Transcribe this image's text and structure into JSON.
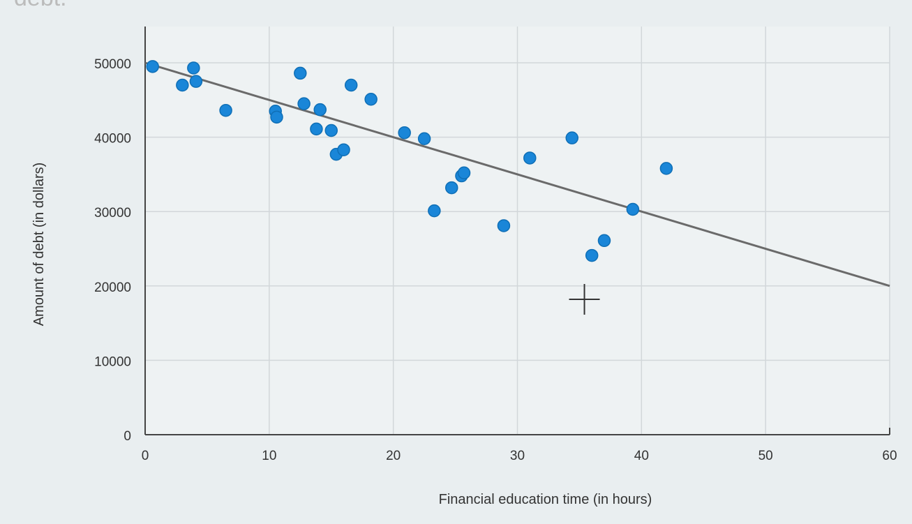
{
  "header_fragment": "debt.",
  "chart_data": {
    "type": "scatter",
    "title": "",
    "xlabel": "Financial education time (in hours)",
    "ylabel": "Amount of debt (in dollars)",
    "xlim": [
      0,
      60
    ],
    "ylim": [
      0,
      50000
    ],
    "xticks": [
      "0",
      "10",
      "20",
      "30",
      "40",
      "50",
      "60"
    ],
    "yticks": [
      "0",
      "10000",
      "20000",
      "30000",
      "40000",
      "50000"
    ],
    "grid": true,
    "colors": {
      "point": "#1a86d8",
      "line": "#6a6a6a",
      "grid": "#d2d7da"
    },
    "series": [
      {
        "type": "scatter",
        "points": [
          [
            0.6,
            49500
          ],
          [
            3.0,
            47000
          ],
          [
            3.9,
            49300
          ],
          [
            4.1,
            47500
          ],
          [
            6.5,
            43600
          ],
          [
            10.5,
            43500
          ],
          [
            10.6,
            42700
          ],
          [
            12.5,
            48600
          ],
          [
            12.8,
            44500
          ],
          [
            13.8,
            41100
          ],
          [
            14.1,
            43700
          ],
          [
            15.0,
            40900
          ],
          [
            15.4,
            37700
          ],
          [
            16.0,
            38300
          ],
          [
            16.6,
            47000
          ],
          [
            18.2,
            45100
          ],
          [
            20.9,
            40600
          ],
          [
            22.5,
            39800
          ],
          [
            23.3,
            30100
          ],
          [
            24.7,
            33200
          ],
          [
            25.5,
            34800
          ],
          [
            25.7,
            35200
          ],
          [
            28.9,
            28100
          ],
          [
            31.0,
            37200
          ],
          [
            34.4,
            39900
          ],
          [
            36.0,
            24100
          ],
          [
            37.0,
            26100
          ],
          [
            39.3,
            30300
          ],
          [
            42.0,
            35800
          ]
        ]
      },
      {
        "type": "line",
        "points": [
          [
            0,
            50000
          ],
          [
            60,
            20000
          ]
        ]
      }
    ],
    "annotations": [
      {
        "type": "crosshair-cursor",
        "x": 35.4,
        "y": 18200
      }
    ]
  }
}
